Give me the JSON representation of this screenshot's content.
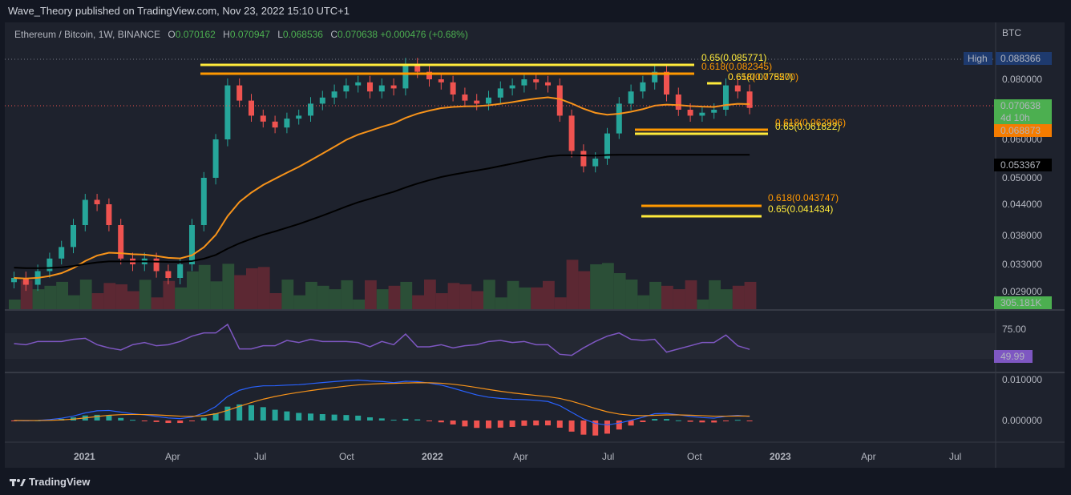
{
  "header": {
    "publisher": "Wave_Theory published on TradingView.com, Nov 23, 2022 15:10 UTC+1"
  },
  "legend": {
    "symbol": "Ethereum / Bitcoin, 1W, BINANCE",
    "o_label": "O",
    "o_value": "0.070162",
    "h_label": "H",
    "h_value": "0.070947",
    "l_label": "L",
    "l_value": "0.068536",
    "c_label": "C",
    "c_value": "0.070638",
    "change": "+0.000476 (+0.68%)"
  },
  "price_axis": {
    "currency": "BTC",
    "ticks": [
      "0.080000",
      "0.070000",
      "0.060000",
      "0.050000",
      "0.044000",
      "0.038000",
      "0.033000",
      "0.029000"
    ],
    "high_label": "High",
    "high_value": "0.088366",
    "last_price": "0.070638",
    "countdown": "4d 10h",
    "ema_fast_value": "0.068873",
    "ema_slow_value": "0.053367",
    "volume_value": "305.181K"
  },
  "rsi_axis": {
    "top_tick": "75.00",
    "value": "49.99"
  },
  "macd_axis": {
    "ticks": [
      "0.010000",
      "0.000000"
    ]
  },
  "time_axis": {
    "labels": [
      "2021",
      "Apr",
      "Jul",
      "Oct",
      "2022",
      "Apr",
      "Jul",
      "Oct",
      "2023",
      "Apr",
      "Jul"
    ]
  },
  "fib_levels": {
    "upper_65": "0.65(0.085771)",
    "upper_618": "0.618(0.082345)",
    "mid_65": "0.65(0.077520)",
    "mid_618": "0.618(0.078570)",
    "mid2_618": "0.618(0.062996)",
    "mid2_65": "0.65(0.061822)",
    "low_618": "0.618(0.043747)",
    "low_65": "0.65(0.041434)"
  },
  "colors": {
    "up": "#26a69a",
    "down": "#ef5350",
    "ema_fast": "#f7931a",
    "ema_slow": "#000000",
    "rsi": "#7e57c2",
    "yellow": "#ffeb3b",
    "orange": "#ff9800"
  },
  "chart_data": {
    "type": "candlestick",
    "title": "Ethereum / Bitcoin, 1W, BINANCE",
    "x": [
      "2021",
      "Apr",
      "Jul",
      "Oct",
      "2022",
      "Apr",
      "Jul",
      "Oct",
      "2023",
      "Apr",
      "Jul"
    ],
    "close_series": [
      0.031,
      0.03,
      0.032,
      0.034,
      0.036,
      0.04,
      0.045,
      0.044,
      0.04,
      0.034,
      0.033,
      0.034,
      0.032,
      0.031,
      0.033,
      0.04,
      0.05,
      0.06,
      0.078,
      0.073,
      0.068,
      0.066,
      0.064,
      0.067,
      0.068,
      0.072,
      0.074,
      0.076,
      0.078,
      0.079,
      0.076,
      0.078,
      0.077,
      0.086,
      0.083,
      0.08,
      0.079,
      0.075,
      0.073,
      0.072,
      0.074,
      0.077,
      0.078,
      0.08,
      0.079,
      0.078,
      0.068,
      0.057,
      0.053,
      0.055,
      0.062,
      0.072,
      0.076,
      0.079,
      0.083,
      0.075,
      0.07,
      0.068,
      0.069,
      0.07,
      0.078,
      0.076,
      0.0706
    ],
    "ema_fast_last": 0.068873,
    "ema_slow_last": 0.053367,
    "fib_levels": [
      0.085771,
      0.082345,
      0.07857,
      0.07752,
      0.062996,
      0.061822,
      0.043747,
      0.041434
    ],
    "rsi_last": 49.99,
    "volume_last": "305.181K"
  }
}
